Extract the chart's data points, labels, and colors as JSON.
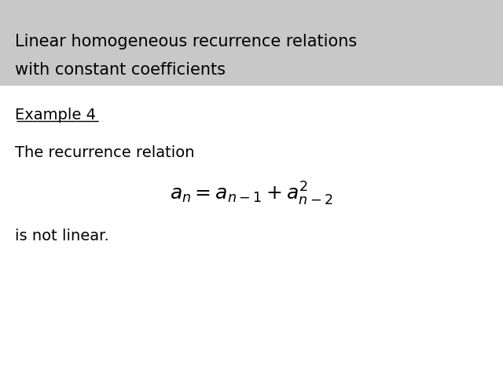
{
  "title_line1": "Linear homogeneous recurrence relations",
  "title_line2": "with constant coefficients",
  "title_bg_color": "#c8c8c8",
  "title_text_color": "#000000",
  "title_fontsize": 15,
  "body_bg_color": "#ffffff",
  "example_label": "Example 4",
  "example_fontsize": 14,
  "text_line1": "The recurrence relation",
  "text_line2": "is not linear.",
  "body_fontsize": 14,
  "equation_fontsize": 18
}
